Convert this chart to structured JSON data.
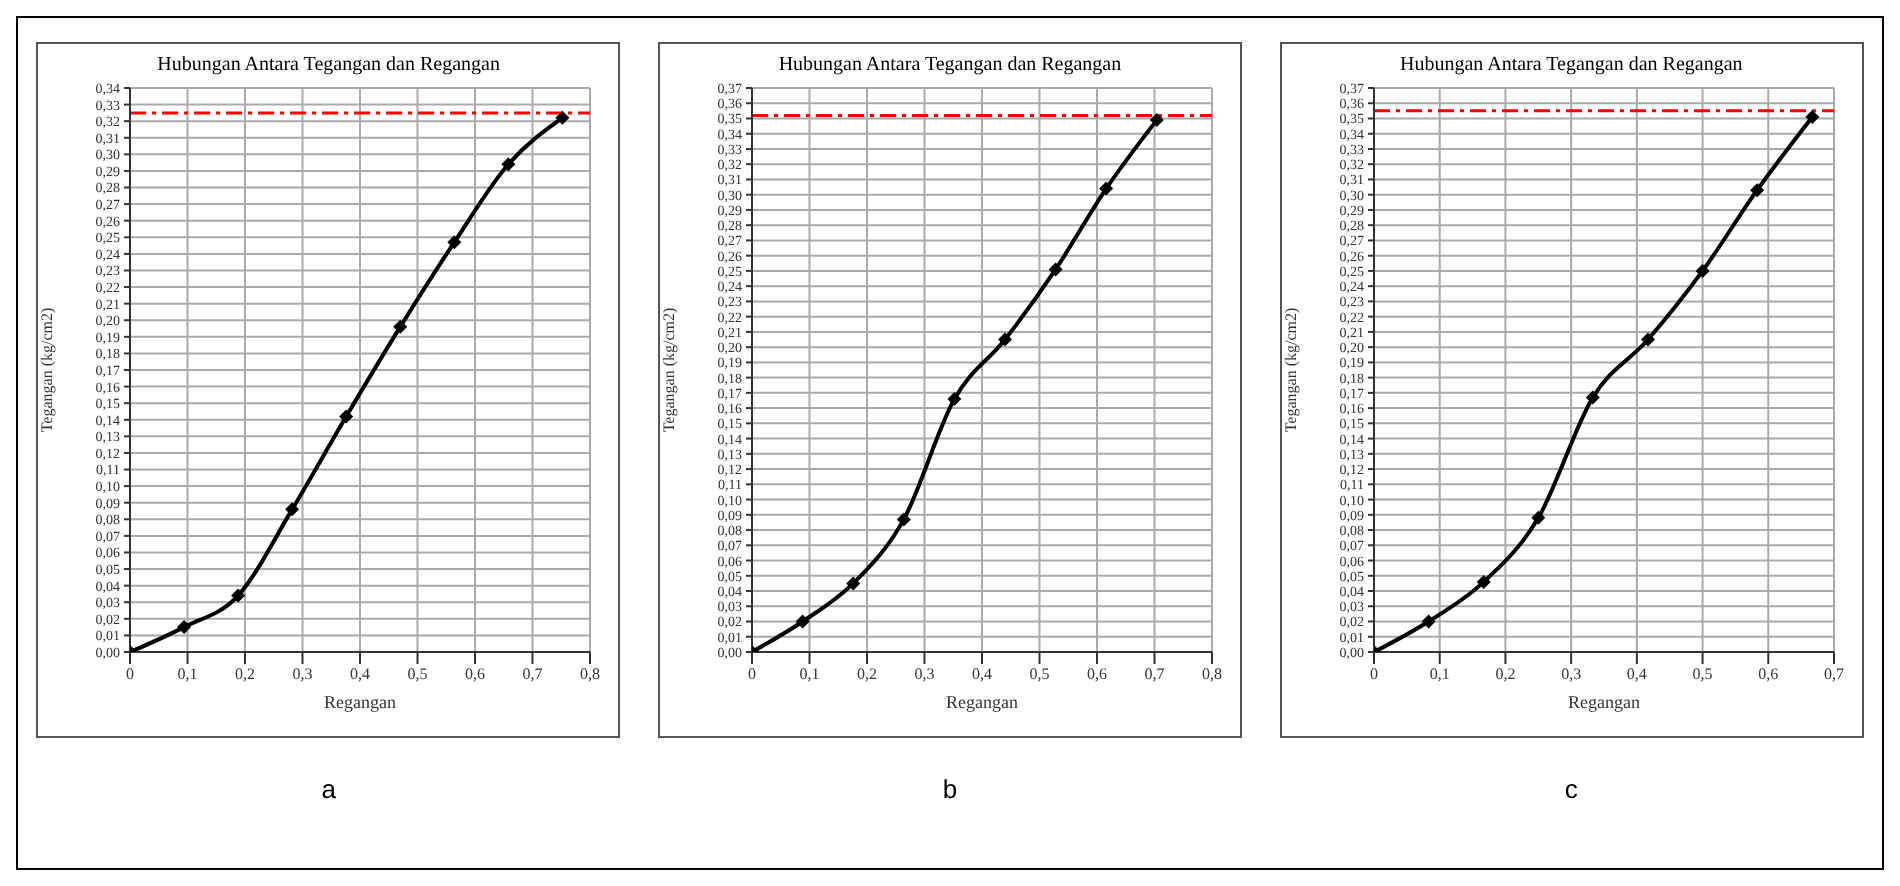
{
  "chart_data": [
    {
      "type": "line",
      "title": "Hubungan Antara Tegangan dan Regangan",
      "xlabel": "Regangan",
      "ylabel": "Tegangan (kg/cm2)",
      "annotations": [
        "a"
      ],
      "grid": true,
      "marker": "diamond",
      "line_style": "solid",
      "x": [
        0,
        0.094,
        0.188,
        0.282,
        0.376,
        0.47,
        0.564,
        0.658,
        0.752
      ],
      "series": [
        {
          "color": "#000000",
          "values": [
            0,
            0.015,
            0.034,
            0.086,
            0.142,
            0.196,
            0.247,
            0.294,
            0.322
          ]
        }
      ],
      "ref_lines": [
        {
          "axis": "y",
          "value": 0.325,
          "color": "#ff0000",
          "line_style": "dashdot"
        }
      ],
      "xlim": [
        0,
        0.8
      ],
      "xticks": [
        {
          "value": 0,
          "label": "0"
        },
        {
          "value": 0.1,
          "label": "0,1"
        },
        {
          "value": 0.2,
          "label": "0,2"
        },
        {
          "value": 0.3,
          "label": "0,3"
        },
        {
          "value": 0.4,
          "label": "0,4"
        },
        {
          "value": 0.5,
          "label": "0,5"
        },
        {
          "value": 0.6,
          "label": "0,6"
        },
        {
          "value": 0.7,
          "label": "0,7"
        },
        {
          "value": 0.8,
          "label": "0,8"
        }
      ],
      "ylim": [
        0,
        0.34
      ],
      "yticks": [
        {
          "value": 0,
          "label": "0,00"
        },
        {
          "value": 0.01,
          "label": "0,01"
        },
        {
          "value": 0.02,
          "label": "0,02"
        },
        {
          "value": 0.03,
          "label": "0,03"
        },
        {
          "value": 0.04,
          "label": "0,04"
        },
        {
          "value": 0.05,
          "label": "0,05"
        },
        {
          "value": 0.06,
          "label": "0,06"
        },
        {
          "value": 0.07,
          "label": "0,07"
        },
        {
          "value": 0.08,
          "label": "0,08"
        },
        {
          "value": 0.09,
          "label": "0,09"
        },
        {
          "value": 0.1,
          "label": "0,10"
        },
        {
          "value": 0.11,
          "label": "0,11"
        },
        {
          "value": 0.12,
          "label": "0,12"
        },
        {
          "value": 0.13,
          "label": "0,13"
        },
        {
          "value": 0.14,
          "label": "0,14"
        },
        {
          "value": 0.15,
          "label": "0,15"
        },
        {
          "value": 0.16,
          "label": "0,16"
        },
        {
          "value": 0.17,
          "label": "0,17"
        },
        {
          "value": 0.18,
          "label": "0,18"
        },
        {
          "value": 0.19,
          "label": "0,19"
        },
        {
          "value": 0.2,
          "label": "0,20"
        },
        {
          "value": 0.21,
          "label": "0,21"
        },
        {
          "value": 0.22,
          "label": "0,22"
        },
        {
          "value": 0.23,
          "label": "0,23"
        },
        {
          "value": 0.24,
          "label": "0,24"
        },
        {
          "value": 0.25,
          "label": "0,25"
        },
        {
          "value": 0.26,
          "label": "0,26"
        },
        {
          "value": 0.27,
          "label": "0,27"
        },
        {
          "value": 0.28,
          "label": "0,28"
        },
        {
          "value": 0.29,
          "label": "0,29"
        },
        {
          "value": 0.3,
          "label": "0,30"
        },
        {
          "value": 0.31,
          "label": "0,31"
        },
        {
          "value": 0.32,
          "label": "0,32"
        },
        {
          "value": 0.33,
          "label": "0,33"
        },
        {
          "value": 0.34,
          "label": "0,34"
        }
      ]
    },
    {
      "type": "line",
      "title": "Hubungan Antara Tegangan dan Regangan",
      "xlabel": "Regangan",
      "ylabel": "Tegangan (kg/cm2)",
      "annotations": [
        "b"
      ],
      "grid": true,
      "marker": "diamond",
      "line_style": "solid",
      "x": [
        0,
        0.088,
        0.176,
        0.264,
        0.352,
        0.44,
        0.528,
        0.616,
        0.704
      ],
      "series": [
        {
          "color": "#000000",
          "values": [
            0,
            0.02,
            0.045,
            0.087,
            0.166,
            0.205,
            0.251,
            0.304,
            0.349
          ]
        }
      ],
      "ref_lines": [
        {
          "axis": "y",
          "value": 0.352,
          "color": "#ff0000",
          "line_style": "dashdot"
        }
      ],
      "xlim": [
        0,
        0.8
      ],
      "xticks": [
        {
          "value": 0,
          "label": "0"
        },
        {
          "value": 0.1,
          "label": "0,1"
        },
        {
          "value": 0.2,
          "label": "0,2"
        },
        {
          "value": 0.3,
          "label": "0,3"
        },
        {
          "value": 0.4,
          "label": "0,4"
        },
        {
          "value": 0.5,
          "label": "0,5"
        },
        {
          "value": 0.6,
          "label": "0,6"
        },
        {
          "value": 0.7,
          "label": "0,7"
        },
        {
          "value": 0.8,
          "label": "0,8"
        }
      ],
      "ylim": [
        0,
        0.37
      ],
      "yticks": [
        {
          "value": 0,
          "label": "0,00"
        },
        {
          "value": 0.01,
          "label": "0,01"
        },
        {
          "value": 0.02,
          "label": "0,02"
        },
        {
          "value": 0.03,
          "label": "0,03"
        },
        {
          "value": 0.04,
          "label": "0,04"
        },
        {
          "value": 0.05,
          "label": "0,05"
        },
        {
          "value": 0.06,
          "label": "0,06"
        },
        {
          "value": 0.07,
          "label": "0,07"
        },
        {
          "value": 0.08,
          "label": "0,08"
        },
        {
          "value": 0.09,
          "label": "0,09"
        },
        {
          "value": 0.1,
          "label": "0,10"
        },
        {
          "value": 0.11,
          "label": "0,11"
        },
        {
          "value": 0.12,
          "label": "0,12"
        },
        {
          "value": 0.13,
          "label": "0,13"
        },
        {
          "value": 0.14,
          "label": "0,14"
        },
        {
          "value": 0.15,
          "label": "0,15"
        },
        {
          "value": 0.16,
          "label": "0,16"
        },
        {
          "value": 0.17,
          "label": "0,17"
        },
        {
          "value": 0.18,
          "label": "0,18"
        },
        {
          "value": 0.19,
          "label": "0,19"
        },
        {
          "value": 0.2,
          "label": "0,20"
        },
        {
          "value": 0.21,
          "label": "0,21"
        },
        {
          "value": 0.22,
          "label": "0,22"
        },
        {
          "value": 0.23,
          "label": "0,23"
        },
        {
          "value": 0.24,
          "label": "0,24"
        },
        {
          "value": 0.25,
          "label": "0,25"
        },
        {
          "value": 0.26,
          "label": "0,26"
        },
        {
          "value": 0.27,
          "label": "0,27"
        },
        {
          "value": 0.28,
          "label": "0,28"
        },
        {
          "value": 0.29,
          "label": "0,29"
        },
        {
          "value": 0.3,
          "label": "0,30"
        },
        {
          "value": 0.31,
          "label": "0,31"
        },
        {
          "value": 0.32,
          "label": "0,32"
        },
        {
          "value": 0.33,
          "label": "0,33"
        },
        {
          "value": 0.34,
          "label": "0,34"
        },
        {
          "value": 0.35,
          "label": "0,35"
        },
        {
          "value": 0.36,
          "label": "0,36"
        },
        {
          "value": 0.37,
          "label": "0,37"
        }
      ]
    },
    {
      "type": "line",
      "title": "Hubungan Antara Tegangan dan Regangan",
      "xlabel": "Regangan",
      "ylabel": "Tegangan (kg/cm2)",
      "annotations": [
        "c"
      ],
      "grid": true,
      "marker": "diamond",
      "line_style": "solid",
      "x": [
        0,
        0.083,
        0.167,
        0.25,
        0.333,
        0.417,
        0.5,
        0.583,
        0.667
      ],
      "series": [
        {
          "color": "#000000",
          "values": [
            0,
            0.02,
            0.046,
            0.088,
            0.167,
            0.205,
            0.25,
            0.303,
            0.351
          ]
        }
      ],
      "ref_lines": [
        {
          "axis": "y",
          "value": 0.355,
          "color": "#ff0000",
          "line_style": "dashdot"
        }
      ],
      "xlim": [
        0,
        0.7
      ],
      "xticks": [
        {
          "value": 0,
          "label": "0"
        },
        {
          "value": 0.1,
          "label": "0,1"
        },
        {
          "value": 0.2,
          "label": "0,2"
        },
        {
          "value": 0.3,
          "label": "0,3"
        },
        {
          "value": 0.4,
          "label": "0,4"
        },
        {
          "value": 0.5,
          "label": "0,5"
        },
        {
          "value": 0.6,
          "label": "0,6"
        },
        {
          "value": 0.7,
          "label": "0,7"
        }
      ],
      "ylim": [
        0,
        0.37
      ],
      "yticks": [
        {
          "value": 0,
          "label": "0,00"
        },
        {
          "value": 0.01,
          "label": "0,01"
        },
        {
          "value": 0.02,
          "label": "0,02"
        },
        {
          "value": 0.03,
          "label": "0,03"
        },
        {
          "value": 0.04,
          "label": "0,04"
        },
        {
          "value": 0.05,
          "label": "0,05"
        },
        {
          "value": 0.06,
          "label": "0,06"
        },
        {
          "value": 0.07,
          "label": "0,07"
        },
        {
          "value": 0.08,
          "label": "0,08"
        },
        {
          "value": 0.09,
          "label": "0,09"
        },
        {
          "value": 0.1,
          "label": "0,10"
        },
        {
          "value": 0.11,
          "label": "0,11"
        },
        {
          "value": 0.12,
          "label": "0,12"
        },
        {
          "value": 0.13,
          "label": "0,13"
        },
        {
          "value": 0.14,
          "label": "0,14"
        },
        {
          "value": 0.15,
          "label": "0,15"
        },
        {
          "value": 0.16,
          "label": "0,16"
        },
        {
          "value": 0.17,
          "label": "0,17"
        },
        {
          "value": 0.18,
          "label": "0,18"
        },
        {
          "value": 0.19,
          "label": "0,19"
        },
        {
          "value": 0.2,
          "label": "0,20"
        },
        {
          "value": 0.21,
          "label": "0,21"
        },
        {
          "value": 0.22,
          "label": "0,22"
        },
        {
          "value": 0.23,
          "label": "0,23"
        },
        {
          "value": 0.24,
          "label": "0,24"
        },
        {
          "value": 0.25,
          "label": "0,25"
        },
        {
          "value": 0.26,
          "label": "0,26"
        },
        {
          "value": 0.27,
          "label": "0,27"
        },
        {
          "value": 0.28,
          "label": "0,28"
        },
        {
          "value": 0.29,
          "label": "0,29"
        },
        {
          "value": 0.3,
          "label": "0,30"
        },
        {
          "value": 0.31,
          "label": "0,31"
        },
        {
          "value": 0.32,
          "label": "0,32"
        },
        {
          "value": 0.33,
          "label": "0,33"
        },
        {
          "value": 0.34,
          "label": "0,34"
        },
        {
          "value": 0.35,
          "label": "0,35"
        },
        {
          "value": 0.36,
          "label": "0,36"
        },
        {
          "value": 0.37,
          "label": "0,37"
        }
      ]
    }
  ]
}
